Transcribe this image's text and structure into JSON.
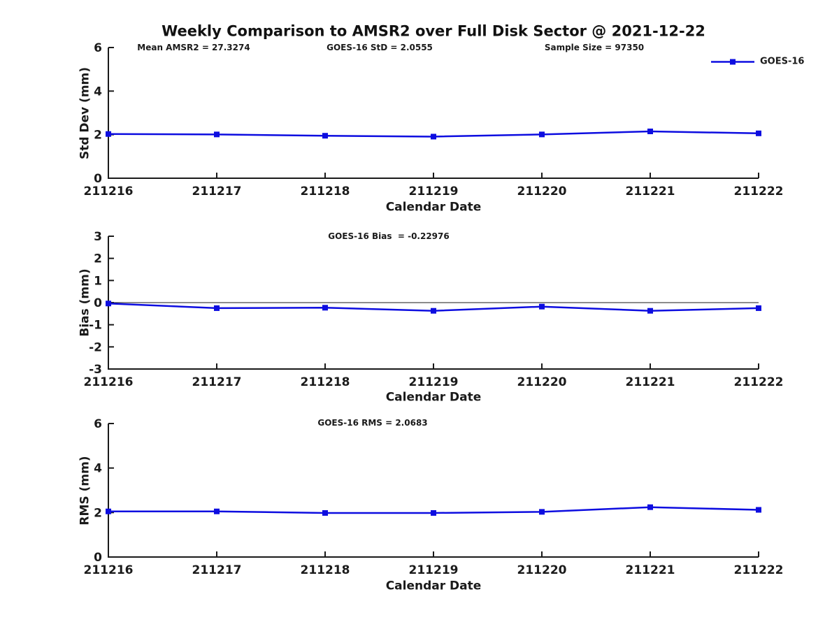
{
  "figure": {
    "title": "Weekly Comparison to AMSR2 over Full Disk Sector @ 2021-12-22"
  },
  "legend": {
    "label": "GOES-16"
  },
  "colors": {
    "series": "#0d0de0",
    "axis": "#1a1a1a",
    "background": "#ffffff"
  },
  "chart_data": [
    {
      "type": "line",
      "panel": "std-dev",
      "categories": [
        "211216",
        "211217",
        "211218",
        "211219",
        "211220",
        "211221",
        "211222"
      ],
      "series": [
        {
          "name": "GOES-16",
          "values": [
            2.03,
            2.01,
            1.95,
            1.91,
            2.01,
            2.15,
            2.06
          ]
        }
      ],
      "annotations": [
        "Mean AMSR2 = 27.3274",
        "GOES-16 StD = 2.0555",
        "Sample Size = 97350"
      ],
      "xlabel": "Calendar Date",
      "ylabel": "Std Dev (mm)",
      "ylim": [
        0,
        6
      ],
      "yticks": [
        0,
        2,
        4,
        6
      ],
      "grid": false,
      "zero_line": false,
      "legend_position": "top-right",
      "marker": "square"
    },
    {
      "type": "line",
      "panel": "bias",
      "categories": [
        "211216",
        "211217",
        "211218",
        "211219",
        "211220",
        "211221",
        "211222"
      ],
      "series": [
        {
          "name": "GOES-16",
          "values": [
            -0.04,
            -0.25,
            -0.23,
            -0.37,
            -0.18,
            -0.37,
            -0.25
          ]
        }
      ],
      "annotations": [
        "GOES-16 Bias  = -0.22976"
      ],
      "xlabel": "Calendar Date",
      "ylabel": "Bias (mm)",
      "ylim": [
        -3,
        3
      ],
      "yticks": [
        -3,
        -2,
        -1,
        0,
        1,
        2,
        3
      ],
      "grid": false,
      "zero_line": true,
      "marker": "square"
    },
    {
      "type": "line",
      "panel": "rms",
      "categories": [
        "211216",
        "211217",
        "211218",
        "211219",
        "211220",
        "211221",
        "211222"
      ],
      "series": [
        {
          "name": "GOES-16",
          "values": [
            2.05,
            2.05,
            1.98,
            1.98,
            2.03,
            2.24,
            2.12
          ]
        }
      ],
      "annotations": [
        "GOES-16 RMS = 2.0683"
      ],
      "xlabel": "Calendar Date",
      "ylabel": "RMS (mm)",
      "ylim": [
        0,
        6
      ],
      "yticks": [
        0,
        2,
        4,
        6
      ],
      "grid": false,
      "zero_line": false,
      "marker": "square"
    }
  ]
}
